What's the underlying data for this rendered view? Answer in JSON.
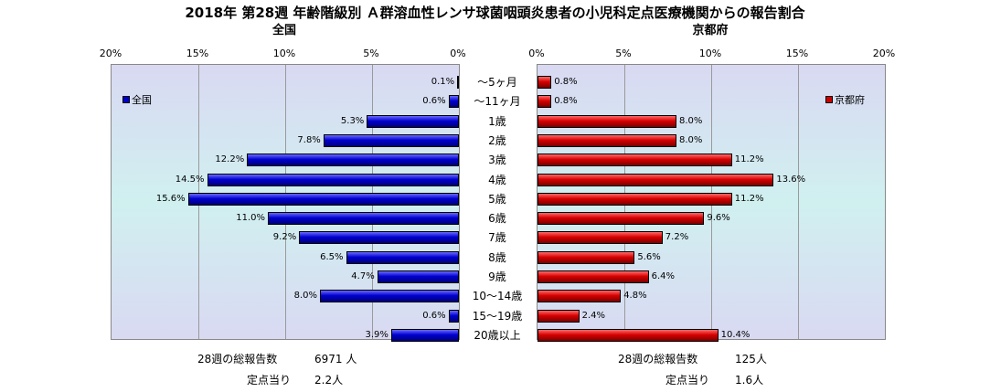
{
  "title": "2018年 第28週 年齢階級別 Ａ群溶血性レンサ球菌咽頭炎患者の小児科定点医療機関からの報告割合",
  "left_panel": {
    "title": "全国",
    "legend": "全国",
    "color": "#0000cc"
  },
  "right_panel": {
    "title": "京都府",
    "legend": "京都府",
    "color": "#cc0000"
  },
  "ticks_left": [
    "20%",
    "15%",
    "10%",
    "5%",
    "0%"
  ],
  "ticks_right": [
    "0%",
    "5%",
    "10%",
    "15%",
    "20%"
  ],
  "footer": {
    "left_total_label": "28週の総報告数",
    "left_total_value": "6971 人",
    "left_per_label": "定点当り",
    "left_per_value": "2.2人",
    "right_total_label": "28週の総報告数",
    "right_total_value": "125人",
    "right_per_label": "定点当り",
    "right_per_value": "1.6人"
  },
  "chart_data": {
    "type": "bar",
    "orientation": "horizontal",
    "title": "2018年 第28週 年齢階級別 Ａ群溶血性レンサ球菌咽頭炎患者の小児科定点医療機関からの報告割合",
    "categories": [
      "～5ヶ月",
      "～11ヶ月",
      "1歳",
      "2歳",
      "3歳",
      "4歳",
      "5歳",
      "6歳",
      "7歳",
      "8歳",
      "9歳",
      "10～14歳",
      "15～19歳",
      "20歳以上"
    ],
    "xlim": [
      0,
      20
    ],
    "grid": true,
    "series": [
      {
        "name": "全国",
        "values": [
          0.1,
          0.6,
          5.3,
          7.8,
          12.2,
          14.5,
          15.6,
          11.0,
          9.2,
          6.5,
          4.7,
          8.0,
          0.6,
          3.9
        ],
        "labels": [
          "0.1%",
          "0.6%",
          "5.3%",
          "7.8%",
          "12.2%",
          "14.5%",
          "15.6%",
          "11.0%",
          "9.2%",
          "6.5%",
          "4.7%",
          "8.0%",
          "0.6%",
          "3.9%"
        ]
      },
      {
        "name": "京都府",
        "values": [
          0.8,
          0.8,
          8.0,
          8.0,
          11.2,
          13.6,
          11.2,
          9.6,
          7.2,
          5.6,
          6.4,
          4.8,
          2.4,
          10.4
        ],
        "labels": [
          "0.8%",
          "0.8%",
          "8.0%",
          "8.0%",
          "11.2%",
          "13.6%",
          "11.2%",
          "9.6%",
          "7.2%",
          "5.6%",
          "6.4%",
          "4.8%",
          "2.4%",
          "10.4%"
        ]
      }
    ]
  }
}
